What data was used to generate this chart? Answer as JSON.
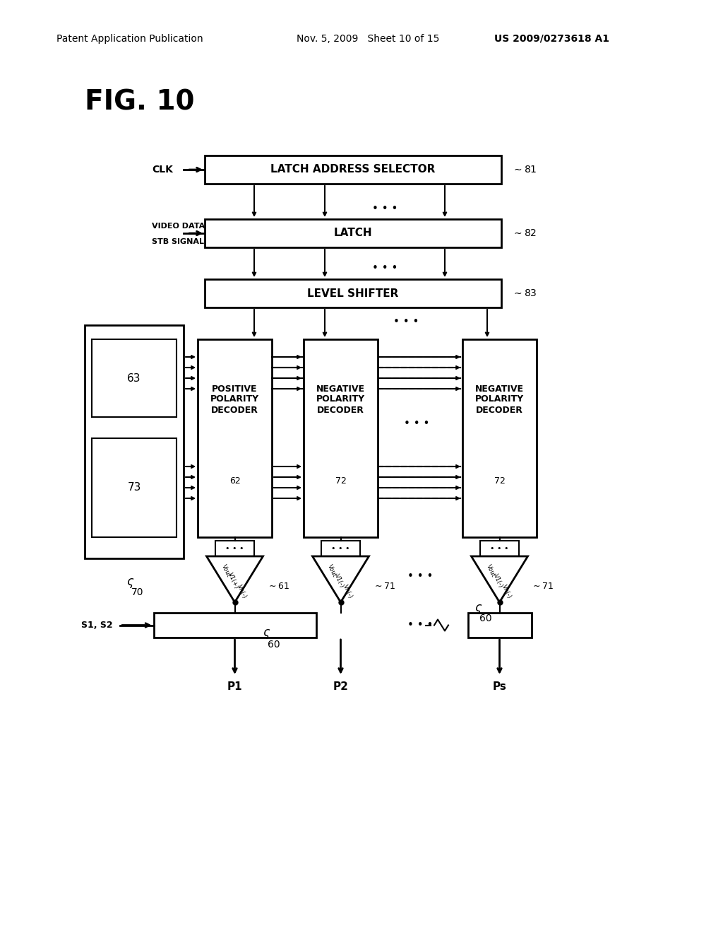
{
  "title": "FIG. 10",
  "header_left": "Patent Application Publication",
  "header_mid": "Nov. 5, 2009   Sheet 10 of 15",
  "header_right": "US 2009/0273618 A1",
  "bg_color": "#ffffff",
  "text_color": "#000000"
}
